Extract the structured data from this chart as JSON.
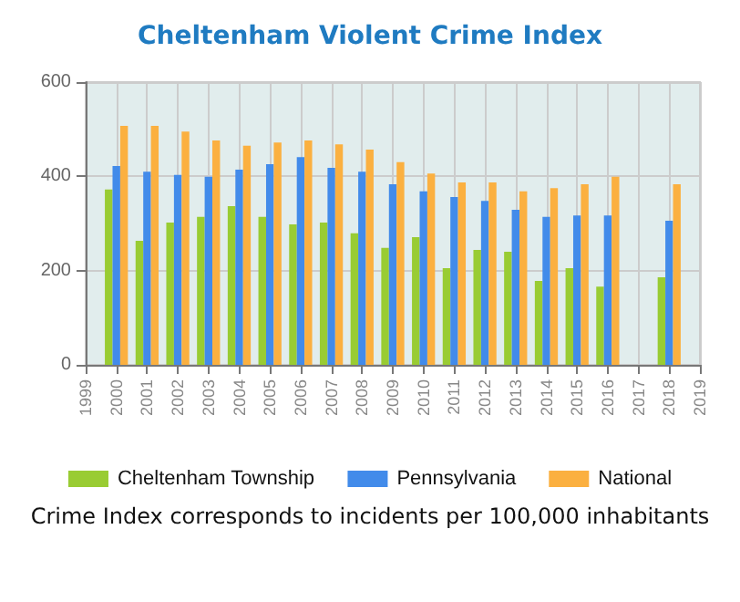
{
  "chart_data": {
    "type": "bar",
    "title": "Cheltenham Violent Crime Index",
    "x": [
      2000,
      2001,
      2002,
      2003,
      2004,
      2005,
      2006,
      2007,
      2008,
      2009,
      2010,
      2011,
      2012,
      2013,
      2014,
      2015,
      2016,
      2017,
      2018
    ],
    "series": [
      {
        "name": "Cheltenham Township",
        "color": "#99cc33",
        "values": [
          372,
          263,
          302,
          314,
          337,
          314,
          298,
          302,
          279,
          248,
          271,
          205,
          244,
          240,
          178,
          205,
          166,
          null,
          186
        ]
      },
      {
        "name": "Pennsylvania",
        "color": "#428bea",
        "values": [
          422,
          410,
          403,
          399,
          414,
          426,
          441,
          418,
          410,
          383,
          368,
          356,
          348,
          329,
          314,
          317,
          317,
          null,
          306
        ]
      },
      {
        "name": "National",
        "color": "#fbb040",
        "values": [
          507,
          507,
          495,
          476,
          465,
          472,
          476,
          468,
          457,
          430,
          406,
          387,
          387,
          368,
          375,
          383,
          399,
          null,
          383
        ]
      }
    ],
    "xlim": [
      1999,
      2019
    ],
    "xticks": [
      1999,
      2000,
      2001,
      2002,
      2003,
      2004,
      2005,
      2006,
      2007,
      2008,
      2009,
      2010,
      2011,
      2012,
      2013,
      2014,
      2015,
      2016,
      2017,
      2018,
      2019
    ],
    "ylim": [
      0,
      600
    ],
    "yticks": [
      0,
      200,
      400,
      600
    ],
    "grid": true,
    "legend": "bottom",
    "annotations": [
      "Crime Index corresponds to incidents per 100,000 inhabitants"
    ]
  }
}
